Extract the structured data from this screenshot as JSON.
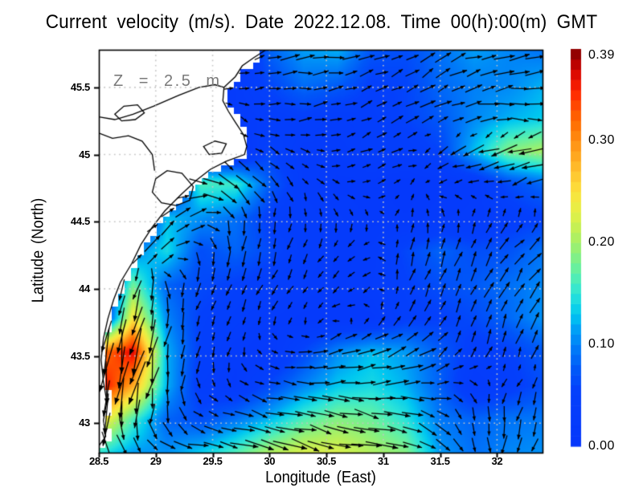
{
  "title": "Current velocity (m/s). Date 2022.12.08. Time 00(h):00(m) GMT",
  "annotation": "Z = 2.5 m",
  "axes": {
    "xlabel": "Longitude (East)",
    "ylabel": "Latitude (North)",
    "x_tick_labels": [
      "28.5",
      "29",
      "29.5",
      "30",
      "30.5",
      "31",
      "31.5",
      "32"
    ],
    "x_tick_values": [
      28.5,
      29,
      29.5,
      30,
      30.5,
      31,
      31.5,
      32
    ],
    "y_tick_labels": [
      "43",
      "43.5",
      "44",
      "44.5",
      "45",
      "45.5"
    ],
    "y_tick_values": [
      43,
      43.5,
      44,
      44.5,
      45,
      45.5
    ],
    "lon_range": [
      28.5,
      32.4
    ],
    "lat_range": [
      42.78,
      45.78
    ],
    "grid_on": true
  },
  "colorbar": {
    "min": 0.0,
    "max": 0.39,
    "step": 0.01,
    "tick_labels": [
      "0.39",
      "0.30",
      "0.20",
      "0.10",
      "0.00"
    ],
    "tick_values": [
      0.39,
      0.3,
      0.2,
      0.1,
      0.0
    ],
    "stops": [
      [
        0.0,
        "#0636fb"
      ],
      [
        0.055,
        "#0440fb"
      ],
      [
        0.075,
        "#0057f8"
      ],
      [
        0.095,
        "#0078f8"
      ],
      [
        0.115,
        "#00a0f6"
      ],
      [
        0.13,
        "#00c8f0"
      ],
      [
        0.15,
        "#2ce4d8"
      ],
      [
        0.17,
        "#5cf0aa"
      ],
      [
        0.19,
        "#8cf07c"
      ],
      [
        0.21,
        "#baf058"
      ],
      [
        0.23,
        "#e4f046"
      ],
      [
        0.25,
        "#fce23c"
      ],
      [
        0.27,
        "#ffc22e"
      ],
      [
        0.29,
        "#ffa01c"
      ],
      [
        0.31,
        "#ff7c06"
      ],
      [
        0.33,
        "#ff5400"
      ],
      [
        0.345,
        "#ff2e00"
      ],
      [
        0.36,
        "#ec1000"
      ],
      [
        0.372,
        "#c80200"
      ],
      [
        0.382,
        "#a00000"
      ],
      [
        0.39,
        "#7e0000"
      ]
    ]
  },
  "chart_data": {
    "type": "heatmap",
    "subtype": "vector-field-quiver",
    "units": "m/s",
    "title": "Current velocity (m/s). Date 2022.12.08. Time 00(h):00(m) GMT",
    "xlabel": "Longitude (East)",
    "ylabel": "Latitude (North)",
    "legend_position": "right-colorbar",
    "value_range": [
      0.0,
      0.39
    ],
    "grid": {
      "lon_start": 28.5,
      "dlon": 0.3,
      "nx": 14,
      "lat_start": 45.78,
      "dlat": -0.25,
      "ny": 13
    },
    "lon_columns": [
      28.5,
      28.8,
      29.1,
      29.4,
      29.7,
      30.0,
      30.3,
      30.6,
      30.9,
      31.2,
      31.5,
      31.8,
      32.1,
      32.4
    ],
    "lat_rows": [
      45.78,
      45.53,
      45.28,
      45.03,
      44.78,
      44.53,
      44.28,
      44.03,
      43.78,
      43.53,
      43.28,
      43.03,
      42.78
    ],
    "uv_m_per_s": [
      [
        null,
        null,
        null,
        null,
        null,
        [
          0.08,
          0.02
        ],
        [
          0.11,
          0.03
        ],
        [
          0.12,
          0.02
        ],
        [
          0.07,
          0.02
        ],
        [
          0.06,
          0.03
        ],
        [
          0.08,
          0.04
        ],
        [
          0.11,
          0.03
        ],
        [
          0.1,
          0.02
        ],
        [
          0.09,
          0.01
        ]
      ],
      [
        null,
        null,
        null,
        null,
        [
          0.03,
          0.01
        ],
        [
          0.06,
          0.01
        ],
        [
          0.09,
          0.0
        ],
        [
          0.08,
          0.01
        ],
        [
          0.05,
          0.02
        ],
        [
          0.05,
          0.03
        ],
        [
          0.07,
          0.05
        ],
        [
          0.09,
          0.04
        ],
        [
          0.1,
          0.02
        ],
        [
          0.12,
          0.0
        ]
      ],
      [
        null,
        null,
        null,
        null,
        [
          0.02,
          -0.02
        ],
        [
          0.04,
          0.0
        ],
        [
          0.05,
          0.01
        ],
        [
          0.04,
          0.01
        ],
        [
          0.04,
          0.02
        ],
        [
          0.05,
          0.03
        ],
        [
          0.07,
          0.03
        ],
        [
          0.1,
          0.02
        ],
        [
          0.12,
          0.0
        ],
        [
          0.13,
          -0.02
        ]
      ],
      [
        null,
        null,
        null,
        null,
        null,
        [
          0.05,
          -0.03
        ],
        [
          0.03,
          -0.01
        ],
        [
          0.03,
          0.01
        ],
        [
          0.04,
          0.02
        ],
        [
          0.04,
          0.01
        ],
        [
          -0.05,
          -0.03
        ],
        [
          -0.12,
          -0.04
        ],
        [
          -0.18,
          -0.05
        ],
        [
          -0.2,
          -0.04
        ]
      ],
      [
        null,
        null,
        null,
        [
          0.16,
          -0.03
        ],
        [
          0.12,
          -0.1
        ],
        [
          0.05,
          -0.06
        ],
        [
          0.02,
          -0.03
        ],
        [
          0.02,
          -0.01
        ],
        [
          0.02,
          0.01
        ],
        [
          0.01,
          0.01
        ],
        [
          -0.02,
          -0.01
        ],
        [
          -0.03,
          0.0
        ],
        [
          -0.06,
          -0.02
        ],
        [
          -0.08,
          -0.03
        ]
      ],
      [
        null,
        null,
        [
          0.09,
          0.09
        ],
        [
          0.1,
          0.04
        ],
        [
          0.01,
          -0.09
        ],
        [
          -0.01,
          -0.05
        ],
        [
          0.0,
          -0.04
        ],
        [
          0.01,
          -0.03
        ],
        [
          0.01,
          -0.02
        ],
        [
          0.0,
          0.02
        ],
        [
          0.0,
          0.03
        ],
        [
          0.01,
          0.03
        ],
        [
          0.02,
          0.04
        ],
        [
          0.02,
          0.05
        ]
      ],
      [
        null,
        [
          0.06,
          0.08
        ],
        [
          0.1,
          0.1
        ],
        [
          0.03,
          -0.06
        ],
        [
          -0.02,
          -0.08
        ],
        [
          -0.02,
          -0.06
        ],
        [
          -0.02,
          -0.04
        ],
        [
          -0.02,
          -0.02
        ],
        [
          -0.03,
          -0.01
        ],
        [
          0.01,
          0.06
        ],
        [
          0.02,
          0.08
        ],
        [
          0.03,
          0.06
        ],
        [
          0.05,
          0.05
        ],
        [
          0.07,
          0.06
        ]
      ],
      [
        null,
        [
          -0.05,
          -0.17
        ],
        [
          0.02,
          -0.08
        ],
        [
          -0.02,
          -0.06
        ],
        [
          -0.02,
          -0.05
        ],
        [
          -0.02,
          -0.04
        ],
        [
          -0.02,
          -0.03
        ],
        [
          -0.02,
          -0.02
        ],
        [
          -0.03,
          -0.02
        ],
        [
          0.02,
          0.05
        ],
        [
          0.03,
          0.06
        ],
        [
          0.03,
          0.07
        ],
        [
          0.04,
          0.08
        ],
        [
          0.05,
          0.09
        ]
      ],
      [
        null,
        [
          -0.06,
          -0.24
        ],
        [
          -0.02,
          -0.1
        ],
        [
          -0.02,
          -0.05
        ],
        [
          -0.02,
          -0.04
        ],
        [
          -0.01,
          -0.03
        ],
        [
          -0.01,
          -0.02
        ],
        [
          -0.02,
          0.0
        ],
        [
          0.01,
          0.02
        ],
        [
          0.03,
          0.04
        ],
        [
          0.02,
          0.05
        ],
        [
          0.02,
          0.06
        ],
        [
          0.03,
          0.08
        ],
        [
          0.04,
          0.1
        ]
      ],
      [
        [
          -0.04,
          -0.3
        ],
        [
          -0.08,
          -0.36
        ],
        [
          -0.02,
          -0.12
        ],
        [
          -0.01,
          -0.05
        ],
        [
          -0.01,
          -0.03
        ],
        [
          0.02,
          -0.01
        ],
        [
          0.06,
          0.01
        ],
        [
          0.1,
          0.03
        ],
        [
          0.12,
          0.04
        ],
        [
          0.1,
          0.05
        ],
        [
          0.06,
          0.05
        ],
        [
          0.02,
          0.04
        ],
        [
          0.02,
          0.05
        ],
        [
          0.03,
          0.07
        ]
      ],
      [
        [
          -0.05,
          -0.37
        ],
        [
          -0.06,
          -0.28
        ],
        [
          -0.02,
          -0.12
        ],
        [
          0.01,
          -0.04
        ],
        [
          0.02,
          -0.02
        ],
        [
          0.06,
          -0.02
        ],
        [
          0.1,
          -0.01
        ],
        [
          0.13,
          0.01
        ],
        [
          0.14,
          0.02
        ],
        [
          0.12,
          0.02
        ],
        [
          0.08,
          0.01
        ],
        [
          0.02,
          -0.02
        ],
        [
          -0.02,
          -0.04
        ],
        [
          -0.03,
          -0.06
        ]
      ],
      [
        [
          -0.04,
          -0.26
        ],
        [
          -0.03,
          -0.16
        ],
        [
          0.02,
          -0.08
        ],
        [
          0.06,
          -0.03
        ],
        [
          0.09,
          -0.02
        ],
        [
          0.12,
          -0.03
        ],
        [
          0.16,
          -0.04
        ],
        [
          0.18,
          -0.05
        ],
        [
          0.17,
          -0.05
        ],
        [
          0.14,
          -0.05
        ],
        [
          0.08,
          -0.05
        ],
        [
          0.02,
          -0.08
        ],
        [
          -0.02,
          -0.09
        ],
        [
          -0.03,
          -0.09
        ]
      ],
      [
        [
          0.06,
          -0.14
        ],
        [
          0.08,
          -0.08
        ],
        [
          0.1,
          -0.04
        ],
        [
          0.13,
          -0.03
        ],
        [
          0.16,
          -0.04
        ],
        [
          0.2,
          -0.05
        ],
        [
          0.22,
          -0.05
        ],
        [
          0.22,
          -0.05
        ],
        [
          0.2,
          -0.05
        ],
        [
          0.18,
          -0.05
        ],
        [
          0.1,
          -0.05
        ],
        [
          0.04,
          -0.08
        ],
        [
          -0.02,
          -0.1
        ],
        [
          -0.04,
          -0.1
        ]
      ]
    ]
  },
  "map": {
    "coastline": [
      [
        29.97,
        45.78
      ],
      [
        29.86,
        45.72
      ],
      [
        29.76,
        45.66
      ],
      [
        29.7,
        45.58
      ],
      [
        29.6,
        45.5
      ],
      [
        29.59,
        45.4
      ],
      [
        29.64,
        45.32
      ],
      [
        29.7,
        45.24
      ],
      [
        29.77,
        45.15
      ],
      [
        29.8,
        45.06
      ],
      [
        29.78,
        45.0
      ],
      [
        29.62,
        44.95
      ],
      [
        29.48,
        44.89
      ],
      [
        29.36,
        44.81
      ],
      [
        29.22,
        44.7
      ],
      [
        29.08,
        44.58
      ],
      [
        28.97,
        44.46
      ],
      [
        28.87,
        44.33
      ],
      [
        28.79,
        44.19
      ],
      [
        28.69,
        44.05
      ],
      [
        28.63,
        43.92
      ],
      [
        28.58,
        43.78
      ],
      [
        28.54,
        43.63
      ],
      [
        28.52,
        43.47
      ],
      [
        28.54,
        43.31
      ],
      [
        28.57,
        43.16
      ],
      [
        28.54,
        43.02
      ],
      [
        28.56,
        42.9
      ],
      [
        28.5,
        42.83
      ]
    ],
    "lakes": [
      [
        [
          28.97,
          44.72
        ],
        [
          29.0,
          44.82
        ],
        [
          29.1,
          44.88
        ],
        [
          29.23,
          44.86
        ],
        [
          29.33,
          44.76
        ],
        [
          29.3,
          44.66
        ],
        [
          29.18,
          44.62
        ],
        [
          29.05,
          44.64
        ]
      ],
      [
        [
          28.64,
          45.3
        ],
        [
          28.72,
          45.36
        ],
        [
          28.84,
          45.37
        ],
        [
          28.9,
          45.31
        ],
        [
          28.82,
          45.26
        ],
        [
          28.7,
          45.25
        ]
      ],
      [
        [
          29.42,
          45.06
        ],
        [
          29.52,
          45.1
        ],
        [
          29.62,
          45.08
        ],
        [
          29.58,
          45.01
        ],
        [
          29.47,
          45.0
        ]
      ]
    ],
    "rivers": [
      [
        [
          28.5,
          45.28
        ],
        [
          28.64,
          45.26
        ],
        [
          28.8,
          45.3
        ],
        [
          28.98,
          45.36
        ],
        [
          29.2,
          45.44
        ],
        [
          29.38,
          45.5
        ],
        [
          29.52,
          45.52
        ],
        [
          29.6,
          45.5
        ]
      ],
      [
        [
          28.5,
          45.16
        ],
        [
          28.62,
          45.12
        ],
        [
          28.76,
          45.14
        ],
        [
          28.88,
          45.1
        ],
        [
          28.97,
          45.0
        ],
        [
          28.99,
          44.88
        ]
      ]
    ],
    "land_color": "#ffffff",
    "coast_color": "#000000",
    "gridline_color": "#c4c4c4",
    "arrow_color": "#000000"
  }
}
